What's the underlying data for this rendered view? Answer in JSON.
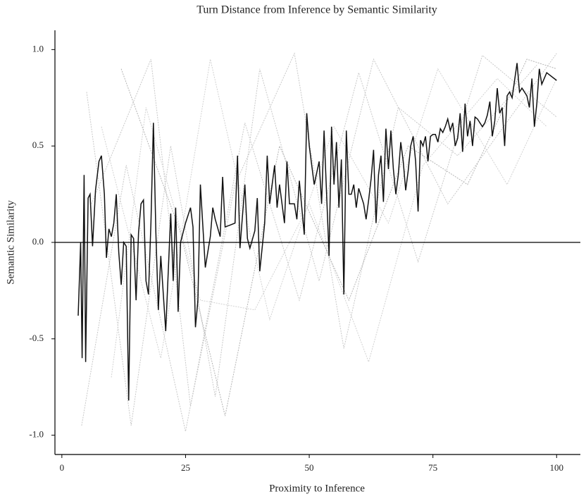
{
  "chart_data": {
    "type": "line",
    "title": "Turn Distance from Inference by Semantic Similarity",
    "xlabel": "Proximity to Inference",
    "ylabel": "Semantic Similarity",
    "xlim": [
      -1.4,
      104.8
    ],
    "ylim": [
      -1.1,
      1.1
    ],
    "xticks": [
      0,
      25,
      50,
      75,
      100
    ],
    "yticks": [
      {
        "value": 1,
        "label": "1.0"
      },
      0.5,
      {
        "value": 0,
        "label": "0.0"
      },
      -0.5,
      {
        "value": -1,
        "label": "-1.0"
      }
    ],
    "hline": 0,
    "series": [
      {
        "color": "#c8c8c8",
        "x": [
          5,
          14,
          22,
          31,
          40,
          52,
          63,
          78,
          100
        ],
        "values": [
          0.78,
          -0.95,
          0.5,
          -0.8,
          0.9,
          -0.2,
          0.95,
          0.2,
          0.98
        ]
      },
      {
        "color": "#c8c8c8",
        "x": [
          4,
          13,
          25,
          37,
          48,
          60,
          72,
          85,
          100
        ],
        "values": [
          -0.95,
          0.4,
          -0.98,
          0.62,
          -0.3,
          0.88,
          -0.1,
          0.97,
          0.65
        ]
      },
      {
        "color": "#c8c8c8",
        "x": [
          6,
          18,
          26,
          35,
          47,
          57,
          68,
          80,
          96
        ],
        "values": [
          0.2,
          0.95,
          -0.85,
          0.3,
          0.98,
          -0.55,
          0.7,
          0.45,
          0.92
        ]
      },
      {
        "color": "#d2d2d2",
        "x": [
          8,
          20,
          30,
          42,
          55,
          66,
          76,
          90,
          100
        ],
        "values": [
          0.6,
          -0.6,
          0.95,
          -0.4,
          0.6,
          0.1,
          0.9,
          0.3,
          0.85
        ]
      },
      {
        "color": "#d2d2d2",
        "x": [
          10,
          17,
          28,
          39,
          50,
          62,
          73,
          88,
          98
        ],
        "values": [
          -0.7,
          0.7,
          -0.3,
          -0.35,
          0.2,
          -0.62,
          0.4,
          0.85,
          0.6
        ]
      },
      {
        "color": "#b4b4b4",
        "x": [
          12,
          24,
          33,
          44,
          58,
          70,
          82,
          94,
          100
        ],
        "values": [
          0.9,
          0.05,
          -0.9,
          0.5,
          -0.3,
          0.5,
          0.3,
          0.95,
          0.9
        ]
      },
      {
        "color": "#111111",
        "x": [
          3.3,
          3.8,
          4.1,
          4.5,
          4.8,
          5.3,
          5.7,
          6.2,
          6.8,
          7.5,
          8,
          8.6,
          9,
          9.5,
          10,
          10.5,
          11,
          11.5,
          12,
          12.5,
          13,
          13.5,
          14,
          14.5,
          15,
          15.5,
          16,
          16.5,
          17,
          17.5,
          18,
          18.5,
          19,
          19.5,
          20,
          21,
          22,
          22.5,
          23,
          23.5,
          24,
          25,
          26,
          26.5,
          27,
          27.5,
          28,
          29,
          30,
          30.5,
          31,
          32,
          32.5,
          33,
          34,
          35,
          35.5,
          36,
          37,
          37.5,
          38,
          39,
          39.5,
          40,
          41,
          41.5,
          42,
          43,
          43.5,
          44,
          45,
          45.5,
          46,
          47,
          47.5,
          48,
          49,
          49.5,
          50,
          51,
          52,
          52.5,
          53,
          54,
          54.5,
          55,
          55.5,
          56,
          56.5,
          57,
          57.5,
          58,
          58.5,
          59,
          59.5,
          60,
          61,
          61.5,
          62,
          62.5,
          63,
          63.5,
          64,
          64.5,
          65,
          65.5,
          66,
          66.5,
          67,
          67.5,
          68,
          68.5,
          69,
          69.5,
          70,
          70.5,
          71,
          71.5,
          72,
          72.5,
          73,
          73.5,
          74,
          74.5,
          75,
          75.5,
          76,
          76.5,
          77,
          77.5,
          78,
          78.5,
          79,
          79.5,
          80,
          80.5,
          81,
          81.5,
          82,
          82.5,
          83,
          83.5,
          84,
          85,
          85.5,
          86,
          86.5,
          87,
          87.5,
          88,
          88.5,
          89,
          89.5,
          90,
          90.5,
          91,
          92,
          92.5,
          93,
          94,
          94.5,
          95,
          95.5,
          96,
          96.5,
          97,
          98,
          100
        ],
        "values": [
          -0.38,
          0.0,
          -0.6,
          0.35,
          -0.62,
          0.23,
          0.25,
          -0.02,
          0.27,
          0.42,
          0.45,
          0.25,
          -0.08,
          0.07,
          0.03,
          0.1,
          0.25,
          -0.05,
          -0.22,
          0.0,
          -0.02,
          -0.82,
          0.04,
          0.02,
          -0.3,
          0.05,
          0.2,
          0.22,
          -0.2,
          -0.27,
          0.1,
          0.62,
          0.05,
          -0.35,
          -0.07,
          -0.46,
          0.15,
          -0.2,
          0.18,
          -0.36,
          0.0,
          0.1,
          0.18,
          0.08,
          -0.44,
          -0.3,
          0.3,
          -0.13,
          0.03,
          0.18,
          0.12,
          0.03,
          0.34,
          0.08,
          0.09,
          0.1,
          0.45,
          -0.03,
          0.3,
          0.02,
          -0.03,
          0.06,
          0.23,
          -0.15,
          0.1,
          0.45,
          0.2,
          0.4,
          0.18,
          0.3,
          0.1,
          0.42,
          0.2,
          0.2,
          0.12,
          0.32,
          0.04,
          0.67,
          0.5,
          0.3,
          0.42,
          0.2,
          0.58,
          -0.07,
          0.6,
          0.3,
          0.52,
          0.18,
          0.43,
          -0.27,
          0.58,
          0.25,
          0.25,
          0.3,
          0.18,
          0.28,
          0.2,
          0.12,
          0.22,
          0.33,
          0.48,
          0.1,
          0.35,
          0.45,
          0.21,
          0.59,
          0.38,
          0.58,
          0.38,
          0.25,
          0.35,
          0.52,
          0.42,
          0.27,
          0.37,
          0.5,
          0.55,
          0.42,
          0.16,
          0.53,
          0.5,
          0.55,
          0.42,
          0.55,
          0.56,
          0.56,
          0.52,
          0.59,
          0.57,
          0.6,
          0.64,
          0.58,
          0.62,
          0.5,
          0.54,
          0.67,
          0.47,
          0.72,
          0.55,
          0.63,
          0.5,
          0.65,
          0.64,
          0.6,
          0.62,
          0.66,
          0.73,
          0.55,
          0.63,
          0.8,
          0.67,
          0.7,
          0.5,
          0.76,
          0.78,
          0.75,
          0.93,
          0.78,
          0.8,
          0.76,
          0.7,
          0.85,
          0.6,
          0.72,
          0.9,
          0.82,
          0.88,
          0.84
        ]
      }
    ]
  }
}
